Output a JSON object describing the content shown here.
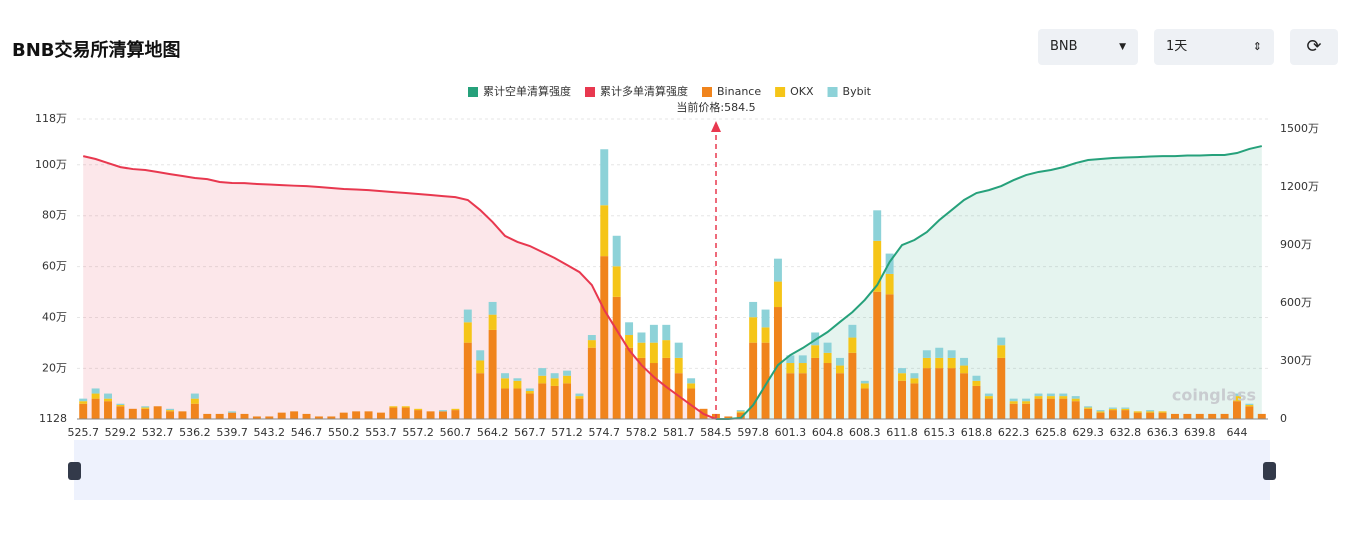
{
  "header": {
    "title": "BNB交易所清算地图",
    "coin_select": "BNB",
    "period_select": "1天"
  },
  "chart_data": {
    "type": "bar",
    "annotation": "当前价格:584.5",
    "watermark": "coinglass",
    "categories": [
      "525.7",
      null,
      null,
      "529.2",
      null,
      null,
      "532.7",
      null,
      null,
      "536.2",
      null,
      null,
      "539.7",
      null,
      null,
      "543.2",
      null,
      null,
      "546.7",
      null,
      null,
      "550.2",
      null,
      null,
      "553.7",
      null,
      null,
      "557.2",
      null,
      null,
      "560.7",
      null,
      null,
      "564.2",
      null,
      null,
      "567.7",
      null,
      null,
      "571.2",
      null,
      null,
      "574.7",
      null,
      null,
      "578.2",
      null,
      null,
      "581.7",
      null,
      null,
      "584.5",
      null,
      null,
      "597.8",
      null,
      null,
      "601.3",
      null,
      null,
      "604.8",
      null,
      null,
      "608.3",
      null,
      null,
      "611.8",
      null,
      null,
      "615.3",
      null,
      null,
      "618.8",
      null,
      null,
      "622.3",
      null,
      null,
      "625.8",
      null,
      null,
      "629.3",
      null,
      null,
      "632.8",
      null,
      null,
      "636.3",
      null,
      null,
      "639.8",
      null,
      null,
      "644",
      null,
      null
    ],
    "ylim": [
      1128,
      1180000
    ],
    "yticks": [
      1128,
      {
        "value": 200000,
        "label": "20万"
      },
      {
        "value": 400000,
        "label": "40万"
      },
      {
        "value": 600000,
        "label": "60万"
      },
      {
        "value": 800000,
        "label": "80万"
      },
      {
        "value": 1000000,
        "label": "100万"
      },
      {
        "value": 1180000,
        "label": "118万"
      }
    ],
    "y2lim": [
      0,
      15520000
    ],
    "y2ticks": [
      0,
      {
        "value": 3000000,
        "label": "300万"
      },
      {
        "value": 6000000,
        "label": "600万"
      },
      {
        "value": 9000000,
        "label": "900万"
      },
      {
        "value": 12000000,
        "label": "1200万"
      },
      {
        "value": 15000000,
        "label": "1500万"
      }
    ],
    "grid": true,
    "series": [
      {
        "name": "累计空单清算强度",
        "color": "#26a17b",
        "type": "line",
        "axis": "y2",
        "values": [
          null,
          null,
          null,
          null,
          null,
          null,
          null,
          null,
          null,
          null,
          null,
          null,
          null,
          null,
          null,
          null,
          null,
          null,
          null,
          null,
          null,
          null,
          null,
          null,
          null,
          null,
          null,
          null,
          null,
          null,
          null,
          null,
          null,
          null,
          null,
          null,
          null,
          null,
          null,
          null,
          null,
          null,
          null,
          null,
          null,
          null,
          null,
          null,
          null,
          null,
          null,
          0,
          0,
          50000,
          720000,
          1760000,
          2790000,
          3310000,
          3670000,
          4090000,
          4500000,
          5020000,
          5530000,
          6160000,
          6930000,
          8120000,
          9000000,
          9260000,
          9670000,
          10290000,
          10810000,
          11330000,
          11690000,
          11840000,
          12050000,
          12360000,
          12620000,
          12780000,
          12880000,
          13030000,
          13240000,
          13400000,
          13450000,
          13500000,
          13530000,
          13550000,
          13580000,
          13600000,
          13600000,
          13630000,
          13630000,
          13660000,
          13660000,
          13760000,
          13970000,
          14120000
        ]
      },
      {
        "name": "累计多单清算强度",
        "color": "#e8384f",
        "type": "line",
        "axis": "y2",
        "values": [
          13600000,
          13450000,
          13240000,
          13030000,
          12930000,
          12880000,
          12780000,
          12670000,
          12570000,
          12470000,
          12410000,
          12260000,
          12210000,
          12200000,
          12160000,
          12130000,
          12100000,
          12070000,
          12050000,
          12000000,
          11950000,
          11900000,
          11870000,
          11840000,
          11790000,
          11740000,
          11690000,
          11640000,
          11590000,
          11530000,
          11480000,
          11330000,
          10810000,
          10190000,
          9470000,
          9160000,
          8950000,
          8640000,
          8330000,
          7970000,
          7600000,
          6930000,
          5640000,
          4600000,
          3570000,
          2790000,
          2170000,
          1660000,
          1190000,
          720000,
          260000,
          0,
          null,
          null,
          null,
          null,
          null,
          null,
          null,
          null,
          null,
          null,
          null,
          null,
          null,
          null,
          null,
          null,
          null,
          null,
          null,
          null,
          null,
          null,
          null,
          null,
          null,
          null,
          null,
          null,
          null,
          null,
          null,
          null,
          null,
          null,
          null,
          null,
          null,
          null,
          null,
          null,
          null,
          null,
          null,
          null
        ]
      },
      {
        "name": "Binance",
        "color": "#f0841c",
        "type": "bar",
        "values": [
          60000,
          80000,
          70000,
          50000,
          40000,
          40000,
          50000,
          30000,
          30000,
          60000,
          20000,
          20000,
          25000,
          20000,
          10000,
          10000,
          25000,
          30000,
          20000,
          10000,
          10000,
          25000,
          30000,
          30000,
          25000,
          45000,
          45000,
          35000,
          30000,
          30000,
          35000,
          300000,
          180000,
          350000,
          120000,
          120000,
          100000,
          140000,
          130000,
          140000,
          80000,
          280000,
          640000,
          480000,
          280000,
          240000,
          220000,
          240000,
          180000,
          120000,
          40000,
          20000,
          10000,
          25000,
          300000,
          300000,
          440000,
          180000,
          180000,
          240000,
          220000,
          180000,
          260000,
          120000,
          500000,
          490000,
          150000,
          140000,
          200000,
          200000,
          200000,
          180000,
          130000,
          80000,
          240000,
          60000,
          60000,
          80000,
          80000,
          80000,
          70000,
          40000,
          25000,
          35000,
          35000,
          25000,
          25000,
          25000,
          20000,
          20000,
          20000,
          20000,
          20000,
          70000,
          50000,
          20000
        ]
      },
      {
        "name": "OKX",
        "color": "#f5c518",
        "type": "bar",
        "values": [
          10000,
          20000,
          10000,
          5000,
          0,
          5000,
          0,
          5000,
          0,
          20000,
          0,
          0,
          0,
          0,
          0,
          0,
          0,
          0,
          0,
          0,
          0,
          0,
          0,
          0,
          0,
          5000,
          5000,
          5000,
          0,
          0,
          5000,
          80000,
          50000,
          60000,
          40000,
          30000,
          10000,
          30000,
          30000,
          30000,
          10000,
          30000,
          200000,
          120000,
          50000,
          60000,
          80000,
          70000,
          60000,
          20000,
          0,
          0,
          0,
          5000,
          100000,
          60000,
          100000,
          40000,
          40000,
          50000,
          40000,
          30000,
          60000,
          20000,
          200000,
          80000,
          30000,
          20000,
          40000,
          40000,
          40000,
          30000,
          20000,
          10000,
          50000,
          10000,
          10000,
          10000,
          10000,
          10000,
          10000,
          5000,
          5000,
          5000,
          5000,
          5000,
          5000,
          5000,
          0,
          0,
          0,
          0,
          0,
          20000,
          5000,
          0
        ]
      },
      {
        "name": "Bybit",
        "color": "#8dd2d8",
        "type": "bar",
        "values": [
          10000,
          20000,
          20000,
          5000,
          0,
          5000,
          0,
          5000,
          0,
          20000,
          0,
          0,
          5000,
          0,
          0,
          0,
          0,
          0,
          0,
          0,
          0,
          0,
          0,
          0,
          0,
          0,
          0,
          0,
          0,
          5000,
          0,
          50000,
          40000,
          50000,
          20000,
          10000,
          10000,
          30000,
          20000,
          20000,
          10000,
          20000,
          220000,
          120000,
          50000,
          40000,
          70000,
          60000,
          60000,
          20000,
          0,
          0,
          0,
          5000,
          60000,
          70000,
          90000,
          30000,
          30000,
          50000,
          40000,
          30000,
          50000,
          10000,
          120000,
          80000,
          20000,
          20000,
          30000,
          40000,
          30000,
          30000,
          20000,
          10000,
          30000,
          10000,
          10000,
          10000,
          10000,
          10000,
          10000,
          5000,
          5000,
          5000,
          5000,
          0,
          5000,
          0,
          0,
          0,
          0,
          0,
          0,
          10000,
          5000,
          0
        ]
      }
    ]
  }
}
